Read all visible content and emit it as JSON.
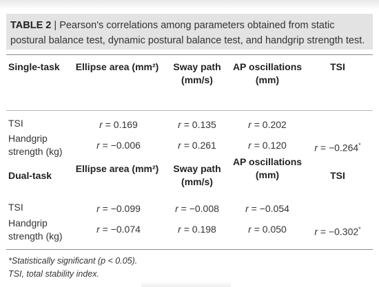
{
  "caption": {
    "label": "TABLE 2",
    "separator": " | ",
    "text": "Pearson's correlations among parameters obtained from static postural balance test, dynamic postural balance test, and handgrip strength test."
  },
  "single_task": {
    "group_label": "Single-task",
    "headers": [
      "Ellipse area (mm²)",
      "Sway path (mm/s)",
      "AP oscillations (mm)",
      "TSI"
    ],
    "rows": [
      {
        "label": "TSI",
        "values": [
          "0.169",
          "0.135",
          "0.202",
          ""
        ],
        "sig": [
          false,
          false,
          false,
          false
        ]
      },
      {
        "label": "Handgrip strength (kg)",
        "values": [
          "−0.006",
          "0.261",
          "0.120",
          "−0.264"
        ],
        "sig": [
          false,
          false,
          false,
          true
        ]
      }
    ]
  },
  "dual_task": {
    "group_label": "Dual-task",
    "headers": [
      "Ellipse area (mm²)",
      "Sway path (mm/s)",
      "AP oscillations (mm)",
      "TSI"
    ],
    "rows": [
      {
        "label": "TSI",
        "values": [
          "−0.099",
          "−0.008",
          "−0.054",
          ""
        ],
        "sig": [
          false,
          false,
          false,
          false
        ]
      },
      {
        "label": "Handgrip strength (kg)",
        "values": [
          "−0.074",
          "0.198",
          "0.050",
          "−0.302"
        ],
        "sig": [
          false,
          false,
          false,
          true
        ]
      }
    ]
  },
  "value_prefix": "r",
  "footnotes": {
    "significance": "*Statistically significant (p < 0.05).",
    "abbreviation": "TSI, total stability index."
  }
}
